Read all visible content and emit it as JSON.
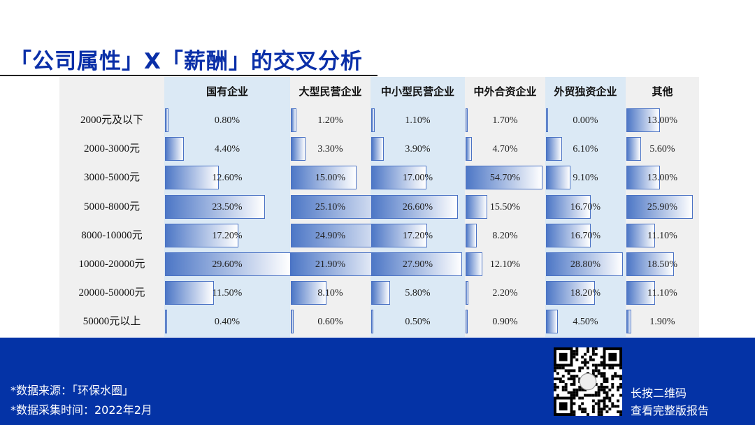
{
  "title": "「公司属性」X「薪酬」的交叉分析",
  "chart_data": {
    "type": "table",
    "categories": [
      "2000元及以下",
      "2000-3000元",
      "3000-5000元",
      "5000-8000元",
      "8000-10000元",
      "10000-20000元",
      "20000-50000元",
      "50000元以上"
    ],
    "series": [
      {
        "name": "国有企业",
        "values": [
          0.8,
          4.4,
          12.6,
          23.5,
          17.2,
          29.6,
          11.5,
          0.4
        ]
      },
      {
        "name": "大型民营企业",
        "values": [
          1.2,
          3.3,
          15.0,
          25.1,
          24.9,
          21.9,
          8.1,
          0.6
        ]
      },
      {
        "name": "中小型民营企业",
        "values": [
          1.1,
          3.9,
          17.0,
          26.6,
          17.2,
          27.9,
          5.8,
          0.5
        ]
      },
      {
        "name": "中外合资企业",
        "values": [
          1.7,
          4.7,
          54.7,
          15.5,
          8.2,
          12.1,
          2.2,
          0.9
        ]
      },
      {
        "name": "外贸独资企业",
        "values": [
          0.0,
          6.1,
          9.1,
          16.7,
          16.7,
          28.8,
          18.2,
          4.5
        ]
      },
      {
        "name": "其他",
        "values": [
          13.0,
          5.6,
          13.0,
          25.9,
          11.1,
          18.5,
          11.1,
          1.9
        ]
      }
    ],
    "unit": "%",
    "colors": {
      "bar": "#4d77c6",
      "col_highlight": "#dbe9f5",
      "col_plain": "#f0f0f0"
    }
  },
  "footer": {
    "source": "*数据来源：「环保水圈」",
    "time": "*数据采集时间：2022年2月",
    "cta_line1": "长按二维码",
    "cta_line2": "查看完整版报告"
  }
}
